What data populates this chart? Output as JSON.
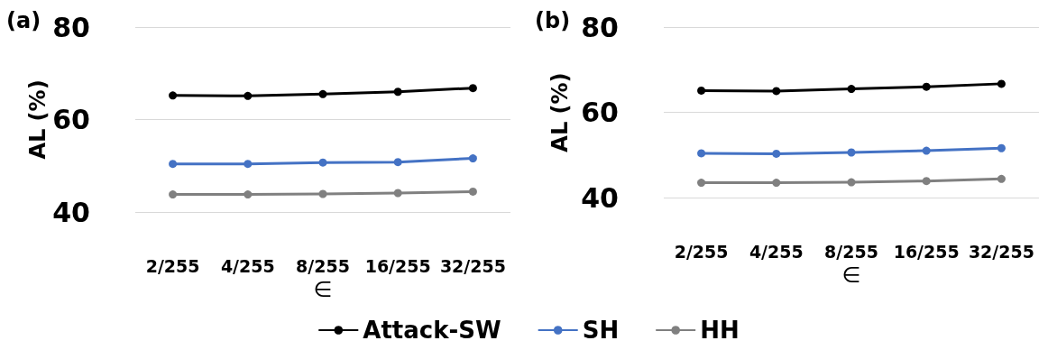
{
  "chart_data": [
    {
      "type": "line",
      "title": "(a)",
      "xlabel": "∈",
      "ylabel": "AL (%)",
      "categories": [
        "2/255",
        "4/255",
        "8/255",
        "16/255",
        "32/255"
      ],
      "ylim": [
        40,
        80
      ],
      "yticks": [
        40,
        60,
        80
      ],
      "grid": "y",
      "legend": "bottom",
      "marker": "circle",
      "series": [
        {
          "name": "Attack-SW",
          "color": "#000000",
          "values": [
            65.2,
            65.1,
            65.5,
            66.0,
            66.8
          ]
        },
        {
          "name": "SH",
          "color": "#4472c4",
          "values": [
            50.4,
            50.4,
            50.7,
            50.8,
            51.6
          ]
        },
        {
          "name": "HH",
          "color": "#808080",
          "values": [
            43.8,
            43.8,
            43.9,
            44.1,
            44.4
          ]
        }
      ]
    },
    {
      "type": "line",
      "title": "(b)",
      "xlabel": "∈",
      "ylabel": "AL (%)",
      "categories": [
        "2/255",
        "4/255",
        "8/255",
        "16/255",
        "32/255"
      ],
      "ylim": [
        40,
        80
      ],
      "yticks": [
        40,
        60,
        80
      ],
      "grid": "y",
      "marker": "circle",
      "series": [
        {
          "color": "#000000",
          "values": [
            65.1,
            65.0,
            65.5,
            66.0,
            66.7
          ]
        },
        {
          "color": "#4472c4",
          "values": [
            50.4,
            50.3,
            50.6,
            51.0,
            51.6
          ]
        },
        {
          "color": "#808080",
          "values": [
            43.5,
            43.5,
            43.6,
            43.9,
            44.4
          ]
        }
      ]
    }
  ]
}
